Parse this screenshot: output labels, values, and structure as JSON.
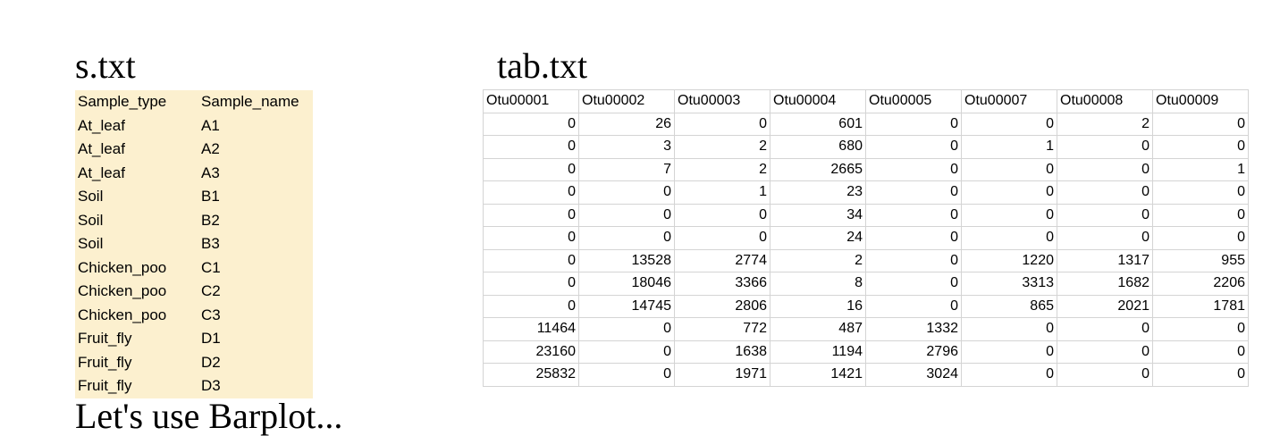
{
  "s_title": "s.txt",
  "tab_title": "tab.txt",
  "s_table": {
    "headers": [
      "Sample_type",
      "Sample_name"
    ],
    "rows": [
      [
        "At_leaf",
        "A1"
      ],
      [
        "At_leaf",
        "A2"
      ],
      [
        "At_leaf",
        "A3"
      ],
      [
        "Soil",
        "B1"
      ],
      [
        "Soil",
        "B2"
      ],
      [
        "Soil",
        "B3"
      ],
      [
        "Chicken_poo",
        "C1"
      ],
      [
        "Chicken_poo",
        "C2"
      ],
      [
        "Chicken_poo",
        "C3"
      ],
      [
        "Fruit_fly",
        "D1"
      ],
      [
        "Fruit_fly",
        "D2"
      ],
      [
        "Fruit_fly",
        "D3"
      ]
    ]
  },
  "tab_table": {
    "headers": [
      "Otu00001",
      "Otu00002",
      "Otu00003",
      "Otu00004",
      "Otu00005",
      "Otu00007",
      "Otu00008",
      "Otu00009"
    ],
    "rows": [
      [
        "0",
        "26",
        "0",
        "601",
        "0",
        "0",
        "2",
        "0"
      ],
      [
        "0",
        "3",
        "2",
        "680",
        "0",
        "1",
        "0",
        "0"
      ],
      [
        "0",
        "7",
        "2",
        "2665",
        "0",
        "0",
        "0",
        "1"
      ],
      [
        "0",
        "0",
        "1",
        "23",
        "0",
        "0",
        "0",
        "0"
      ],
      [
        "0",
        "0",
        "0",
        "34",
        "0",
        "0",
        "0",
        "0"
      ],
      [
        "0",
        "0",
        "0",
        "24",
        "0",
        "0",
        "0",
        "0"
      ],
      [
        "0",
        "13528",
        "2774",
        "2",
        "0",
        "1220",
        "1317",
        "955"
      ],
      [
        "0",
        "18046",
        "3366",
        "8",
        "0",
        "3313",
        "1682",
        "2206"
      ],
      [
        "0",
        "14745",
        "2806",
        "16",
        "0",
        "865",
        "2021",
        "1781"
      ],
      [
        "11464",
        "0",
        "772",
        "487",
        "1332",
        "0",
        "0",
        "0"
      ],
      [
        "23160",
        "0",
        "1638",
        "1194",
        "2796",
        "0",
        "0",
        "0"
      ],
      [
        "25832",
        "0",
        "1971",
        "1421",
        "3024",
        "0",
        "0",
        "0"
      ]
    ]
  },
  "bottom_text": "Let's use Barplot..."
}
